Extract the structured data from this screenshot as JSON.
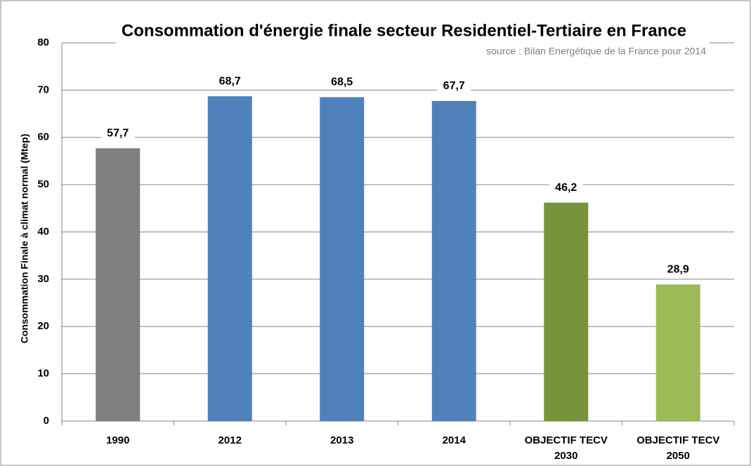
{
  "chart_data": {
    "type": "bar",
    "title": "Consommation d'énergie finale secteur Residentiel-Tertiaire en France",
    "subtitle": "source : Bilan Energétique de la France pour 2014",
    "y_label": "Consommation Finale à climat normal (Mtep)",
    "categories": [
      "1990",
      "2012",
      "2013",
      "2014",
      "OBJECTIF TECV 2030",
      "OBJECTIF TECV 2050"
    ],
    "values": [
      57.7,
      68.7,
      68.5,
      67.7,
      46.2,
      28.9
    ],
    "value_labels": [
      "57,7",
      "68,7",
      "68,5",
      "67,7",
      "46,2",
      "28,9"
    ],
    "colors": [
      "#7f7f7f",
      "#4f81bd",
      "#4f81bd",
      "#4f81bd",
      "#77933c",
      "#9bbb59"
    ],
    "ylim": [
      0,
      80
    ],
    "yticks": [
      0,
      10,
      20,
      30,
      40,
      50,
      60,
      70,
      80
    ],
    "grid": true
  }
}
